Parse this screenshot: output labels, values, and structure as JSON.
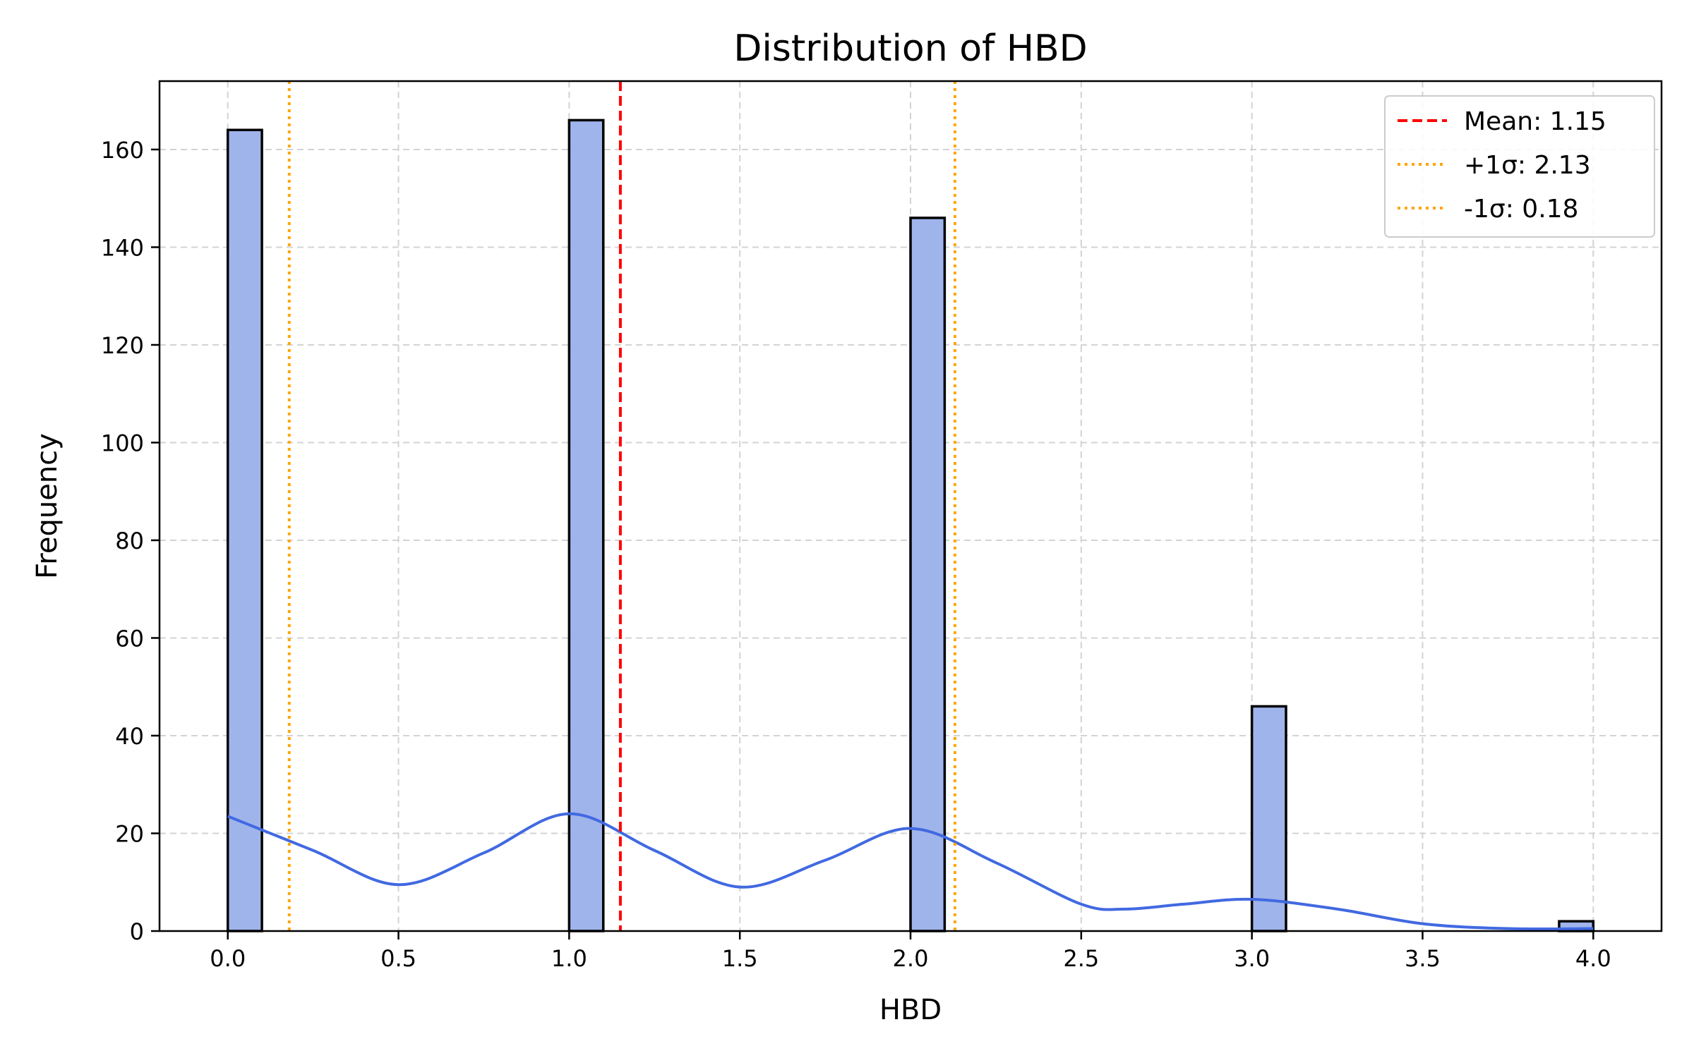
{
  "chart_data": {
    "type": "bar",
    "title": "Distribution of HBD",
    "xlabel": "HBD",
    "ylabel": "Frequency",
    "xlim": [
      -0.2,
      4.2
    ],
    "ylim": [
      0,
      174
    ],
    "xticks": [
      0.0,
      0.5,
      1.0,
      1.5,
      2.0,
      2.5,
      3.0,
      3.5,
      4.0
    ],
    "xtick_labels": [
      "0.0",
      "0.5",
      "1.0",
      "1.5",
      "2.0",
      "2.5",
      "3.0",
      "3.5",
      "4.0"
    ],
    "yticks": [
      0,
      20,
      40,
      60,
      80,
      100,
      120,
      140,
      160
    ],
    "ytick_labels": [
      "0",
      "20",
      "40",
      "60",
      "80",
      "100",
      "120",
      "140",
      "160"
    ],
    "grid": true,
    "legend_position": "top-right",
    "bin_width": 0.1,
    "bars": [
      {
        "x_start": 0.0,
        "value": 164
      },
      {
        "x_start": 1.0,
        "value": 166
      },
      {
        "x_start": 2.0,
        "value": 146
      },
      {
        "x_start": 3.0,
        "value": 46
      },
      {
        "x_start": 3.9,
        "value": 2
      }
    ],
    "kde": {
      "x": [
        0.0,
        0.25,
        0.5,
        0.75,
        1.0,
        1.25,
        1.5,
        1.75,
        2.0,
        2.25,
        2.5,
        2.63,
        2.8,
        3.0,
        3.25,
        3.5,
        3.75,
        4.0
      ],
      "y": [
        23.5,
        16.5,
        9.5,
        16.0,
        24.0,
        16.5,
        9.0,
        14.5,
        21.0,
        14.0,
        5.5,
        4.5,
        5.5,
        6.5,
        4.5,
        1.5,
        0.5,
        0.5
      ]
    },
    "reference_lines": [
      {
        "label": "Mean: 1.15",
        "x": 1.15,
        "style": "dashed",
        "color": "#ff0000"
      },
      {
        "label": "+1σ: 2.13",
        "x": 2.13,
        "style": "dotted",
        "color": "#ffa500"
      },
      {
        "label": "-1σ: 0.18",
        "x": 0.18,
        "style": "dotted",
        "color": "#ffa500"
      }
    ],
    "colors": {
      "bar_fill": "#a0b4ec",
      "bar_edge": "#000000",
      "kde_line": "#4169e1",
      "grid": "#d3d3d3"
    }
  }
}
